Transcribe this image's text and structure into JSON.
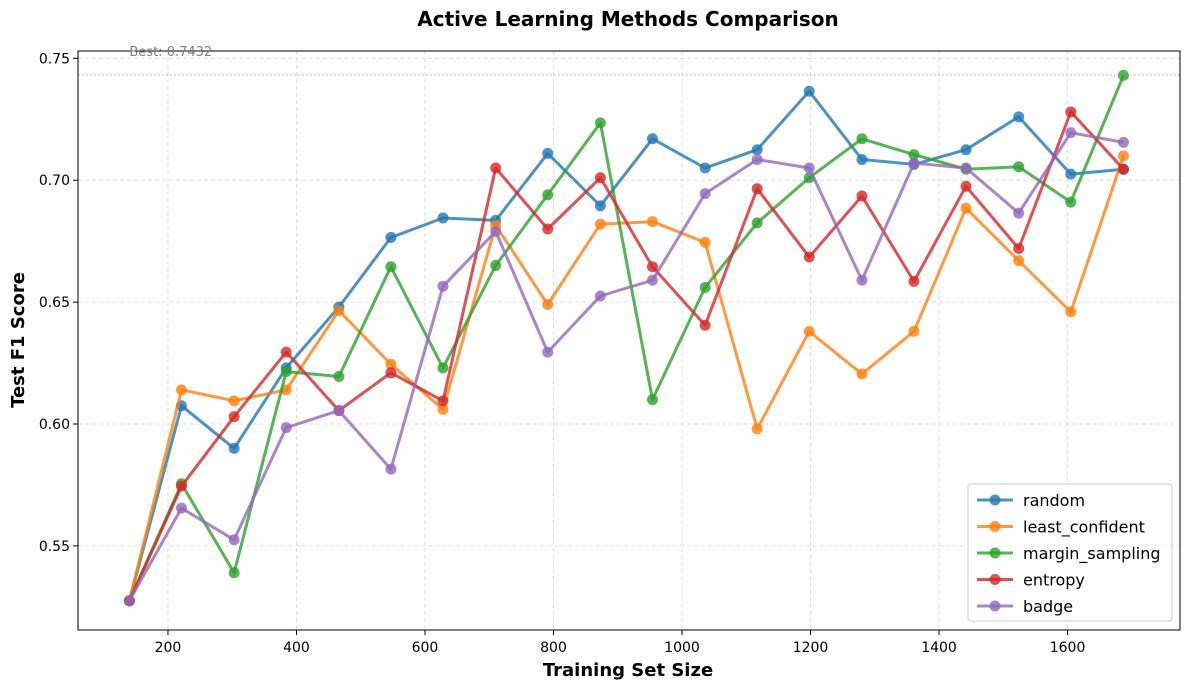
{
  "chart_data": {
    "type": "line",
    "title": "Active Learning Methods Comparison",
    "xlabel": "Training Set Size",
    "ylabel": "Test F1 Score",
    "xlim": [
      60,
      1775
    ],
    "ylim": [
      0.5155,
      0.753
    ],
    "xticks": [
      200,
      400,
      600,
      800,
      1000,
      1200,
      1400,
      1600
    ],
    "yticks": [
      0.55,
      0.6,
      0.65,
      0.7,
      0.75
    ],
    "ytick_labels": [
      "0.55",
      "0.60",
      "0.65",
      "0.70",
      "0.75"
    ],
    "grid": true,
    "legend_position": "lower-right",
    "annotation": {
      "text": "Best: 0.7432",
      "x": 140,
      "y": 0.7525
    },
    "best_line": {
      "y": 0.7432,
      "style": "dotted",
      "color": "#aaaaaa"
    },
    "x": [
      140,
      221,
      303,
      384,
      466,
      547,
      628,
      710,
      791,
      873,
      954,
      1036,
      1117,
      1198,
      1280,
      1361,
      1442,
      1524,
      1605,
      1687
    ],
    "series": [
      {
        "name": "random",
        "color": "#1f77b4",
        "values": [
          0.5275,
          0.6075,
          0.59,
          0.623,
          0.648,
          0.6765,
          0.6845,
          0.6835,
          0.711,
          0.6895,
          0.717,
          0.705,
          0.7125,
          0.7365,
          0.7085,
          0.7065,
          0.7125,
          0.726,
          0.7025,
          0.7045
        ]
      },
      {
        "name": "least_confident",
        "color": "#ff7f0e",
        "values": [
          0.5275,
          0.614,
          0.6095,
          0.614,
          0.6465,
          0.6245,
          0.606,
          0.6815,
          0.649,
          0.682,
          0.683,
          0.6745,
          0.598,
          0.638,
          0.6205,
          0.638,
          0.6885,
          0.667,
          0.646,
          0.71
        ]
      },
      {
        "name": "margin_sampling",
        "color": "#2ca02c",
        "values": [
          0.5275,
          0.5755,
          0.539,
          0.6215,
          0.6195,
          0.6645,
          0.623,
          0.665,
          0.694,
          0.7235,
          0.61,
          0.656,
          0.6825,
          0.701,
          0.717,
          0.7105,
          0.7045,
          0.7055,
          0.691,
          0.743
        ]
      },
      {
        "name": "entropy",
        "color": "#d62728",
        "values": [
          0.5275,
          0.5745,
          0.603,
          0.6295,
          0.6055,
          0.621,
          0.6095,
          0.705,
          0.68,
          0.701,
          0.6645,
          0.6405,
          0.6965,
          0.6685,
          0.6935,
          0.6585,
          0.6975,
          0.672,
          0.728,
          0.7045
        ]
      },
      {
        "name": "badge",
        "color": "#9467bd",
        "values": [
          0.5275,
          0.5655,
          0.5525,
          0.5985,
          0.6055,
          0.5815,
          0.6565,
          0.679,
          0.6295,
          0.6525,
          0.659,
          0.6945,
          0.7085,
          0.705,
          0.659,
          0.707,
          0.705,
          0.6865,
          0.7195,
          0.7155
        ]
      }
    ]
  }
}
